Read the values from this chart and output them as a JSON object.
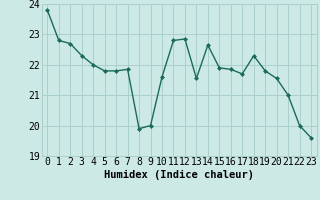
{
  "x": [
    0,
    1,
    2,
    3,
    4,
    5,
    6,
    7,
    8,
    9,
    10,
    11,
    12,
    13,
    14,
    15,
    16,
    17,
    18,
    19,
    20,
    21,
    22,
    23
  ],
  "y": [
    23.8,
    22.8,
    22.7,
    22.3,
    22.0,
    21.8,
    21.8,
    21.85,
    19.9,
    20.0,
    21.6,
    22.8,
    22.85,
    21.55,
    22.65,
    21.9,
    21.85,
    21.7,
    22.3,
    21.8,
    21.55,
    21.0,
    20.0,
    19.6
  ],
  "line_color": "#1a6b5a",
  "marker": "D",
  "marker_size": 2,
  "bg_color": "#cce9e5",
  "grid_color": "#aacfca",
  "xlabel": "Humidex (Indice chaleur)",
  "ylim": [
    19,
    24
  ],
  "xlim": [
    -0.5,
    23.5
  ],
  "yticks": [
    19,
    20,
    21,
    22,
    23,
    24
  ],
  "xticks": [
    0,
    1,
    2,
    3,
    4,
    5,
    6,
    7,
    8,
    9,
    10,
    11,
    12,
    13,
    14,
    15,
    16,
    17,
    18,
    19,
    20,
    21,
    22,
    23
  ],
  "xlabel_fontsize": 7.5,
  "tick_fontsize": 7,
  "line_width": 1.0
}
